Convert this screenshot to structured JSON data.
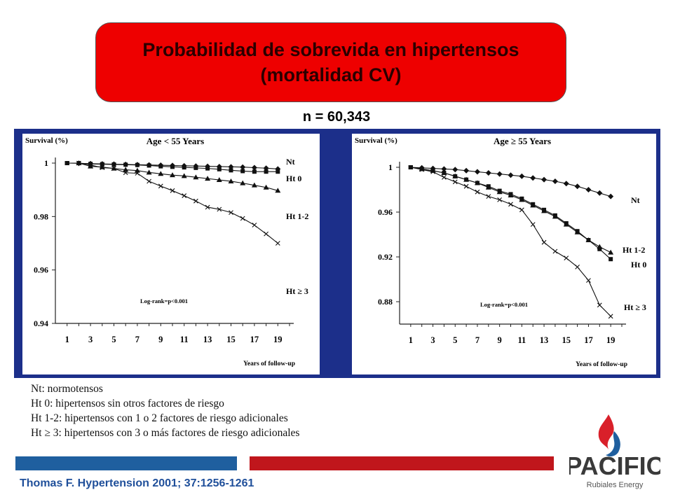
{
  "title": {
    "line1": "Probabilidad de sobrevida en hipertensos",
    "line2": "(mortalidad CV)"
  },
  "sample_size": "n = 60,343",
  "legend": [
    "Nt: normotensos",
    "Ht 0: hipertensos sin otros factores de riesgo",
    "Ht 1-2: hipertensos con 1 o 2 factores de riesgo adicionales",
    "Ht ≥ 3: hipertensos con 3 o más factores de riesgo adicionales"
  ],
  "citation": "Thomas F. Hypertension 2001; 37:1256-1261",
  "logo": {
    "name": "PACIFIC",
    "subtitle": "Rubiales Energy",
    "icon": "flame-drop-icon"
  },
  "colors": {
    "title_bg": "#ee0000",
    "panel_frame": "#1c2f8a",
    "bar_blue": "#1f5f9f",
    "bar_red": "#c0161c",
    "citation": "#1f4f9a"
  },
  "chart_data": [
    {
      "type": "line",
      "title": "Age < 55 Years",
      "ylabel": "Survival (%)",
      "xlabel": "Years of follow-up",
      "xticks": [
        1,
        3,
        5,
        7,
        9,
        11,
        13,
        15,
        17,
        19
      ],
      "yticks": [
        {
          "v": 1,
          "label": "1"
        },
        {
          "v": 0.98,
          "label": "0.98"
        },
        {
          "v": 0.96,
          "label": "0.96"
        },
        {
          "v": 0.94,
          "label": "0.94"
        }
      ],
      "xlim": [
        0,
        20
      ],
      "ylim": [
        0.94,
        1.0
      ],
      "annotation": "Log-rank=p<0.001",
      "series": [
        {
          "name": "Nt",
          "marker": "diamond",
          "x": [
            1,
            2,
            3,
            4,
            5,
            6,
            7,
            8,
            9,
            10,
            11,
            12,
            13,
            14,
            15,
            16,
            17,
            18,
            19
          ],
          "y": [
            1.0,
            0.9999,
            0.9998,
            0.9997,
            0.9996,
            0.9995,
            0.9994,
            0.9993,
            0.9992,
            0.9991,
            0.999,
            0.9989,
            0.9988,
            0.9987,
            0.9986,
            0.9985,
            0.9983,
            0.9981,
            0.9978
          ]
        },
        {
          "name": "Ht 0",
          "marker": "square",
          "x": [
            1,
            2,
            3,
            4,
            5,
            6,
            7,
            8,
            9,
            10,
            11,
            12,
            13,
            14,
            15,
            16,
            17,
            18,
            19
          ],
          "y": [
            1.0,
            1.0,
            0.9997,
            0.9996,
            0.9995,
            0.9994,
            0.9993,
            0.9991,
            0.9988,
            0.9986,
            0.9984,
            0.9982,
            0.998,
            0.9977,
            0.9973,
            0.997,
            0.9968,
            0.9968,
            0.9968
          ]
        },
        {
          "name": "Ht 1-2",
          "marker": "triangle",
          "x": [
            1,
            2,
            3,
            4,
            5,
            6,
            7,
            8,
            9,
            10,
            11,
            12,
            13,
            14,
            15,
            16,
            17,
            18,
            19
          ],
          "y": [
            1.0,
            1.0,
            0.9988,
            0.9985,
            0.998,
            0.9975,
            0.9972,
            0.9965,
            0.996,
            0.9955,
            0.9952,
            0.9947,
            0.9942,
            0.9937,
            0.9932,
            0.9925,
            0.9917,
            0.9909,
            0.9897
          ]
        },
        {
          "name": "Ht ≥ 3",
          "marker": "x",
          "x": [
            1,
            2,
            3,
            4,
            5,
            6,
            7,
            8,
            9,
            10,
            11,
            12,
            13,
            14,
            15,
            16,
            17,
            18,
            19
          ],
          "y": [
            1.0,
            1.0,
            0.9993,
            0.9983,
            0.998,
            0.9964,
            0.9962,
            0.9932,
            0.9914,
            0.9897,
            0.9878,
            0.9858,
            0.9835,
            0.9827,
            0.9815,
            0.9793,
            0.9768,
            0.9735,
            0.97
          ]
        }
      ],
      "series_labels": [
        "Nt",
        "Ht 0",
        "Ht 1-2",
        "Ht ≥ 3"
      ]
    },
    {
      "type": "line",
      "title": "Age ≥ 55 Years",
      "ylabel": "Survival (%)",
      "xlabel": "Years of follow-up",
      "xticks": [
        1,
        3,
        5,
        7,
        9,
        11,
        13,
        15,
        17,
        19
      ],
      "yticks": [
        {
          "v": 1,
          "label": "1"
        },
        {
          "v": 0.96,
          "label": "0.96"
        },
        {
          "v": 0.92,
          "label": "0.92"
        },
        {
          "v": 0.88,
          "label": "0.88"
        }
      ],
      "xlim": [
        0,
        20
      ],
      "ylim": [
        0.86,
        1.0
      ],
      "annotation": "Log-rank=p<0.001",
      "series": [
        {
          "name": "Nt",
          "marker": "diamond",
          "x": [
            1,
            2,
            3,
            4,
            5,
            6,
            7,
            8,
            9,
            10,
            11,
            12,
            13,
            14,
            15,
            16,
            17,
            18,
            19
          ],
          "y": [
            1.0,
            0.9995,
            0.999,
            0.9985,
            0.998,
            0.997,
            0.996,
            0.995,
            0.994,
            0.993,
            0.992,
            0.9905,
            0.989,
            0.9875,
            0.9855,
            0.983,
            0.98,
            0.977,
            0.974
          ]
        },
        {
          "name": "Ht 0",
          "marker": "square",
          "x": [
            1,
            2,
            3,
            4,
            5,
            6,
            7,
            8,
            9,
            10,
            11,
            12,
            13,
            14,
            15,
            16,
            17,
            18,
            19
          ],
          "y": [
            1.0,
            0.9985,
            0.997,
            0.995,
            0.992,
            0.989,
            0.986,
            0.983,
            0.979,
            0.976,
            0.972,
            0.967,
            0.962,
            0.957,
            0.95,
            0.943,
            0.935,
            0.927,
            0.918
          ]
        },
        {
          "name": "Ht 1-2",
          "marker": "triangle",
          "x": [
            1,
            2,
            3,
            4,
            5,
            6,
            7,
            8,
            9,
            10,
            11,
            12,
            13,
            14,
            15,
            16,
            17,
            18,
            19
          ],
          "y": [
            1.0,
            0.9985,
            0.997,
            0.995,
            0.992,
            0.989,
            0.986,
            0.982,
            0.978,
            0.975,
            0.971,
            0.966,
            0.961,
            0.956,
            0.949,
            0.942,
            0.935,
            0.929,
            0.924
          ]
        },
        {
          "name": "Ht ≥ 3",
          "marker": "x",
          "x": [
            1,
            2,
            3,
            4,
            5,
            6,
            7,
            8,
            9,
            10,
            11,
            12,
            13,
            14,
            15,
            16,
            17,
            18,
            19
          ],
          "y": [
            1.0,
            0.998,
            0.996,
            0.991,
            0.987,
            0.983,
            0.978,
            0.974,
            0.971,
            0.967,
            0.962,
            0.949,
            0.933,
            0.925,
            0.919,
            0.911,
            0.899,
            0.877,
            0.867
          ]
        }
      ],
      "series_labels": [
        "Nt",
        "Ht 1-2",
        "Ht 0",
        "Ht ≥ 3"
      ]
    }
  ]
}
